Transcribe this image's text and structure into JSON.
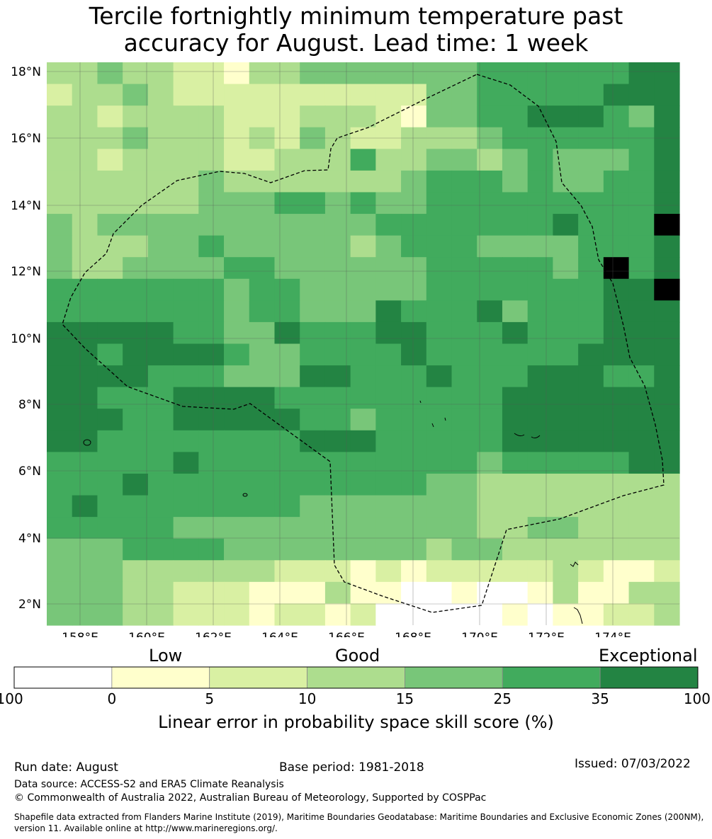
{
  "title": {
    "line1": "Tercile fortnightly minimum temperature past",
    "line2": "accuracy for August. Lead time: 1 week"
  },
  "map": {
    "lon_ticks": [
      "158°E",
      "160°E",
      "162°E",
      "164°E",
      "166°E",
      "168°E",
      "170°E",
      "172°E",
      "174°E"
    ],
    "lat_ticks": [
      "18°N",
      "16°N",
      "14°N",
      "12°N",
      "10°N",
      "8°N",
      "6°N",
      "4°N",
      "2°N"
    ],
    "legend_colors": [
      "#ffffff",
      "#ffffcc",
      "#d9f0a3",
      "#addd8e",
      "#78c679",
      "#41ab5d",
      "#238443"
    ],
    "grid": [
      "3343322133444444455555566",
      "2334322222222224455555666",
      "3323333222333214455666546",
      "3334333232432233345555556",
      "3323333223335334434544456",
      "3333334333333345554544556",
      "3333334445545445555555556",
      "4344444444444555555565557",
      "4333445444443455544445556",
      "4334444554444445555545756",
      "5555555455444445555555667",
      "5555555455444655564555666",
      "6666655446555665556555666",
      "6656666544555565555556666",
      "6666555444665556555666556",
      "6655566665555555556666666",
      "6665566666554555556666666",
      "6655555555666555556666666",
      "5555565555555555545555566",
      "5556555555555554433333333",
      "5655555555444444433333333",
      "5555544444444444433443333",
      "4445555444444443443333333",
      "4443333332221212222232112",
      "4443322211131100100131133",
      "4443322212212000001011223"
    ],
    "eez_label": ""
  },
  "colorbar": {
    "category_low": "Low",
    "category_good": "Good",
    "category_exceptional": "Exceptional",
    "ticks": [
      "-100",
      "0",
      "5",
      "10",
      "15",
      "25",
      "35",
      "100"
    ],
    "label": "Linear error in probability space skill score (%)"
  },
  "footer": {
    "run_date": "Run date: August",
    "base_period": "Base period: 1981-2018",
    "issued": "Issued: 07/03/2022",
    "data_source": "Data source: ACCESS-S2 and ERA5 Climate Reanalysis",
    "copyright": "© Commonwealth of Australia 2022, Australian Bureau of Meteorology, Supported by COSPPac",
    "shapefile_line1": "Shapefile data extracted from Flanders Marine Institute (2019), Maritime Boundaries Geodatabase: Maritime Boundaries and Exclusive Economic Zones (200NM),",
    "shapefile_line2": "version 11. Available online at http://www.marineregions.org/."
  }
}
